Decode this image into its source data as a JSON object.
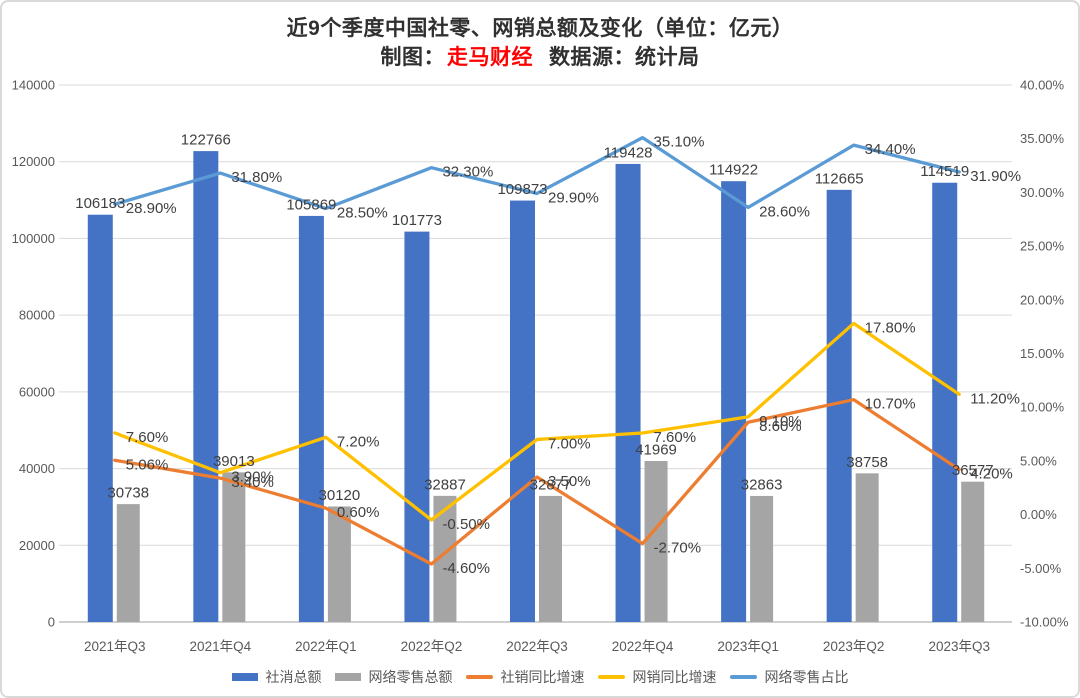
{
  "header": {
    "title": "近9个季度中国社零、网销总额及变化（单位：亿元）",
    "subtitle_prefix": "制图：",
    "subtitle_brand": "走马财经",
    "subtitle_suffix": "数据源：统计局",
    "brand_color": "#FF0000"
  },
  "chart_data": {
    "type": "bar",
    "subtype": "combo-bar-line-dual-axis",
    "title": "近9个季度中国社零、网销总额及变化（单位：亿元）",
    "categories": [
      "2021年Q3",
      "2021年Q4",
      "2022年Q1",
      "2022年Q2",
      "2022年Q3",
      "2022年Q4",
      "2023年Q1",
      "2023年Q2",
      "2023年Q3"
    ],
    "series": [
      {
        "id": "social-retail-total",
        "name": "社消总额",
        "type": "bar",
        "axis": "primary",
        "color": "#4472C4",
        "values": [
          106183,
          122766,
          105869,
          101773,
          109873,
          119428,
          114922,
          112665,
          114519
        ],
        "labels": [
          "106183",
          "122766",
          "105869",
          "101773",
          "109873",
          "119428",
          "114922",
          "112665",
          "114519"
        ]
      },
      {
        "id": "online-retail-total",
        "name": "网络零售总额",
        "type": "bar",
        "axis": "primary",
        "color": "#A5A5A5",
        "values": [
          30738,
          39013,
          30120,
          32887,
          32877,
          41969,
          32863,
          38758,
          36577
        ],
        "labels": [
          "30738",
          "39013",
          "30120",
          "32887",
          "32877",
          "41969",
          "32863",
          "38758",
          "36577"
        ]
      },
      {
        "id": "social-retail-yoy",
        "name": "社销同比增速",
        "type": "line",
        "axis": "secondary",
        "color": "#ED7D31",
        "values": [
          5.06,
          3.4,
          0.6,
          -4.6,
          3.5,
          -2.7,
          8.6,
          10.7,
          4.2
        ],
        "labels": [
          "5.06%",
          "3.40%",
          "0.60%",
          "-4.60%",
          "3.50%",
          "-2.70%",
          "8.60%",
          "10.70%",
          "4.20%"
        ]
      },
      {
        "id": "online-retail-yoy",
        "name": "网销同比增速",
        "type": "line",
        "axis": "secondary",
        "color": "#FFC000",
        "values": [
          7.6,
          3.9,
          7.2,
          -0.5,
          7.0,
          7.6,
          9.1,
          17.8,
          11.2
        ],
        "labels": [
          "7.60%",
          "3.90%",
          "7.20%",
          "-0.50%",
          "7.00%",
          "7.60%",
          "9.10%",
          "17.80%",
          "11.20%"
        ]
      },
      {
        "id": "online-retail-share",
        "name": "网络零售占比",
        "type": "line",
        "axis": "secondary",
        "color": "#5B9BD5",
        "values": [
          28.9,
          31.8,
          28.5,
          32.3,
          29.9,
          35.1,
          28.6,
          34.4,
          31.9
        ],
        "labels": [
          "28.90%",
          "31.80%",
          "28.50%",
          "32.30%",
          "29.90%",
          "35.10%",
          "28.60%",
          "34.40%",
          "31.90%"
        ]
      }
    ],
    "primary_axis": {
      "min": 0,
      "max": 140000,
      "step": 20000,
      "tick_labels": [
        "140000",
        "120000",
        "100000",
        "80000",
        "60000",
        "40000",
        "20000",
        "0"
      ]
    },
    "secondary_axis": {
      "min": -10,
      "max": 40,
      "step": 5,
      "tick_labels": [
        "40.00%",
        "35.00%",
        "30.00%",
        "25.00%",
        "20.00%",
        "15.00%",
        "10.00%",
        "5.00%",
        "0.00%",
        "-5.00%",
        "-10.00%"
      ]
    },
    "grid": true,
    "legend_position": "bottom",
    "colors": {
      "grid": "#D9D9D9",
      "axis_line": "#BFBFBF",
      "axis_text": "#595959",
      "label_text": "#404040"
    }
  }
}
